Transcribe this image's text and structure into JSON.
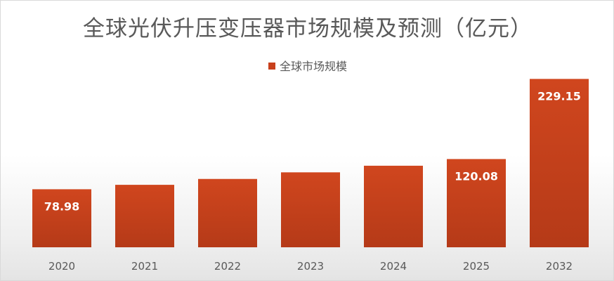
{
  "chart_data": {
    "type": "bar",
    "title": "全球光伏升压变压器市场规模及预测（亿元）",
    "legend": {
      "position": "top",
      "entries": [
        "全球市场规模"
      ]
    },
    "categories": [
      "2020",
      "2021",
      "2022",
      "2023",
      "2024",
      "2025",
      "2032"
    ],
    "series": [
      {
        "name": "全球市场规模",
        "values": [
          78.98,
          85,
          93,
          102,
          111,
          120.08,
          229.15
        ]
      }
    ],
    "data_labels": [
      "78.98",
      "",
      "",
      "",
      "",
      "120.08",
      "229.15"
    ],
    "ylim": [
      0,
      240
    ],
    "grid": false,
    "colors": {
      "bar": "#c8401c",
      "bar_dark": "#a83416",
      "text": "#595959"
    }
  }
}
